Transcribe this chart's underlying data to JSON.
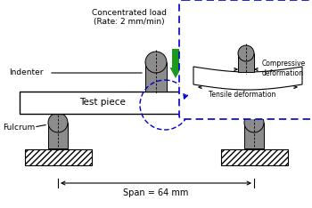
{
  "bg_color": "#ffffff",
  "gray_color": "#8c8c8c",
  "green_color": "#1a9a1a",
  "blue_color": "#0000cc",
  "black": "#000000",
  "text_concentrated": "Concentrated load\n(Rate: 2 mm/min)",
  "text_indenter": "Indenter",
  "text_testpiece": "Test piece",
  "text_fulcrum": "Fulcrum",
  "text_span": "Span = 64 mm",
  "text_compressive": "Compressive\ndeformation",
  "text_tensile": "Tensile deformation",
  "figw": 3.5,
  "figh": 2.34,
  "dpi": 100
}
